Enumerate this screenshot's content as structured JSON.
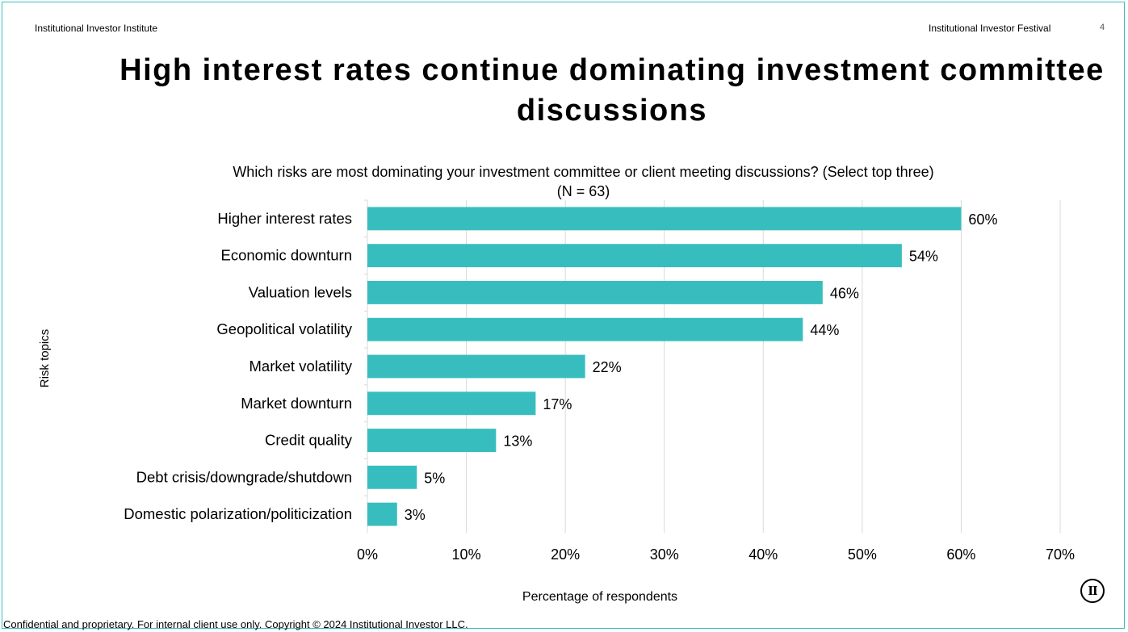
{
  "header": {
    "left": "Institutional Investor Institute",
    "right": "Institutional Investor Festival",
    "page": "4"
  },
  "title": "High interest rates continue dominating investment committee discussions",
  "question": {
    "line1": "Which risks are most dominating your investment committee or client meeting discussions? (Select top three)",
    "line2": "(N = 63)"
  },
  "footer": "Confidential and proprietary. For internal client use only. Copyright © 2024 Institutional Investor LLC.",
  "logo_text": "II",
  "chart_data": {
    "type": "bar",
    "orientation": "horizontal",
    "categories": [
      "Higher interest rates",
      "Economic downturn",
      "Valuation levels",
      "Geopolitical volatility",
      "Market volatility",
      "Market downturn",
      "Credit quality",
      "Debt crisis/downgrade/shutdown",
      "Domestic polarization/politicization"
    ],
    "values": [
      60,
      54,
      46,
      44,
      22,
      17,
      13,
      5,
      3
    ],
    "data_labels": [
      "60%",
      "54%",
      "46%",
      "44%",
      "22%",
      "17%",
      "13%",
      "5%",
      "3%"
    ],
    "xlabel": "Percentage of respondents",
    "ylabel": "Risk topics",
    "xlim": [
      0,
      70
    ],
    "xticks": [
      0,
      10,
      20,
      30,
      40,
      50,
      60,
      70
    ],
    "xtick_labels": [
      "0%",
      "10%",
      "20%",
      "30%",
      "40%",
      "50%",
      "60%",
      "70%"
    ],
    "grid": "vertical",
    "bar_color": "#38bdbf",
    "grid_color": "#d9d9d9"
  }
}
